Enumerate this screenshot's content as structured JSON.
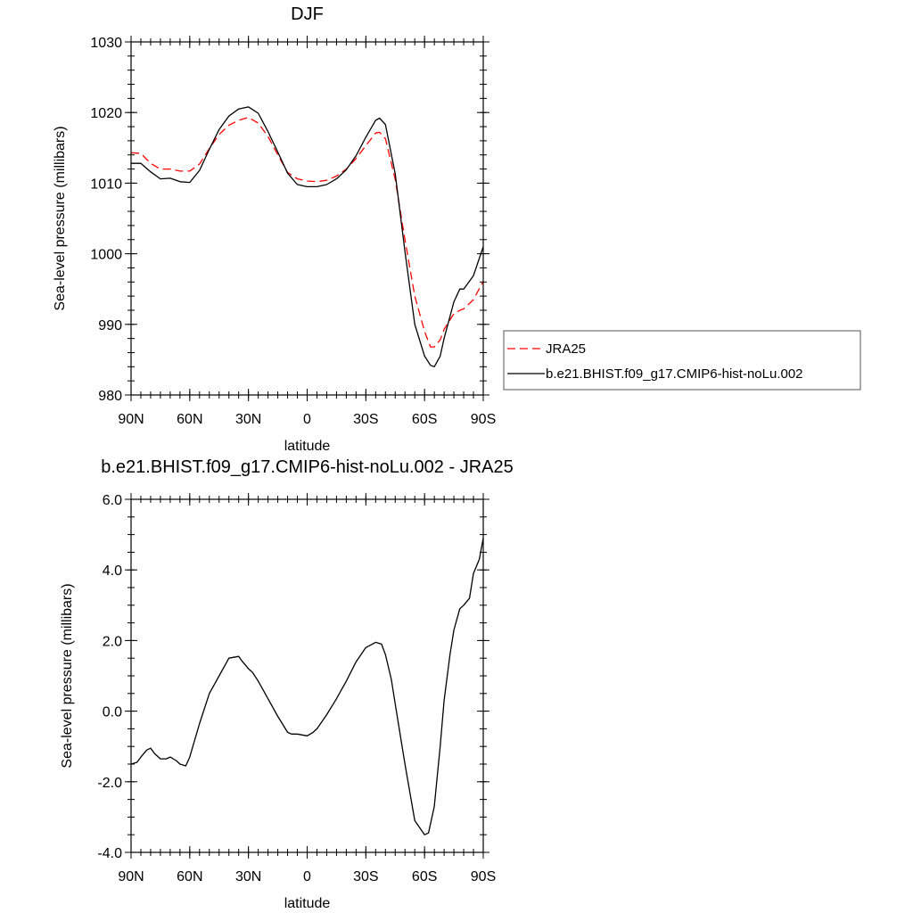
{
  "chart_data": [
    {
      "type": "line",
      "title": "DJF",
      "xlabel": "latitude",
      "ylabel": "Sea-level pressure (millibars)",
      "xlim": [
        90,
        -90
      ],
      "ylim": [
        980,
        1030
      ],
      "xticks": [
        90,
        60,
        30,
        0,
        -30,
        -60,
        -90
      ],
      "xtick_labels": [
        "90N",
        "60N",
        "30N",
        "0",
        "30S",
        "60S",
        "90S"
      ],
      "yticks": [
        980,
        990,
        1000,
        1010,
        1020,
        1030
      ],
      "ytick_labels": [
        "980",
        "990",
        "1000",
        "1010",
        "1020",
        "1030"
      ],
      "legend": {
        "placement": "right"
      },
      "series": [
        {
          "name": "JRA25",
          "color": "#ff0000",
          "dash": "dashed",
          "x": [
            90,
            85,
            80,
            75,
            70,
            65,
            60,
            55,
            50,
            45,
            40,
            35,
            30,
            25,
            20,
            15,
            10,
            5,
            0,
            -5,
            -10,
            -15,
            -20,
            -25,
            -30,
            -35,
            -37,
            -40,
            -45,
            -50,
            -55,
            -60,
            -63,
            -65,
            -68,
            -70,
            -75,
            -78,
            -80,
            -85,
            -90
          ],
          "y": [
            1014.3,
            1014.2,
            1012.8,
            1012.0,
            1012.0,
            1011.7,
            1011.7,
            1012.7,
            1014.9,
            1016.9,
            1018.2,
            1018.9,
            1019.3,
            1018.5,
            1016.6,
            1014.0,
            1011.5,
            1010.6,
            1010.3,
            1010.2,
            1010.4,
            1011.0,
            1012.0,
            1013.5,
            1015.3,
            1017.1,
            1017.2,
            1016.3,
            1010.5,
            1002.0,
            994.0,
            989.0,
            986.8,
            986.8,
            987.8,
            989.3,
            991.5,
            992.0,
            992.2,
            993.5,
            996.1
          ]
        },
        {
          "name": "b.e21.BHIST.f09_g17.CMIP6-hist-noLu.002",
          "color": "#000000",
          "dash": "solid",
          "x": [
            90,
            85,
            80,
            75,
            70,
            65,
            60,
            55,
            50,
            45,
            40,
            35,
            30,
            25,
            20,
            15,
            10,
            5,
            0,
            -5,
            -10,
            -15,
            -20,
            -25,
            -30,
            -35,
            -37,
            -40,
            -45,
            -50,
            -55,
            -60,
            -63,
            -65,
            -68,
            -70,
            -75,
            -78,
            -80,
            -85,
            -90
          ],
          "y": [
            1012.8,
            1012.8,
            1011.6,
            1010.6,
            1010.7,
            1010.2,
            1010.1,
            1011.8,
            1014.8,
            1017.6,
            1019.5,
            1020.5,
            1020.8,
            1019.9,
            1017.3,
            1014.4,
            1011.4,
            1009.8,
            1009.5,
            1009.5,
            1009.8,
            1010.6,
            1011.9,
            1013.9,
            1016.5,
            1018.9,
            1019.2,
            1018.3,
            1011.3,
            1000.3,
            990.0,
            985.5,
            984.2,
            984.0,
            985.5,
            988.0,
            993.2,
            995.0,
            995.0,
            996.9,
            1001.0
          ]
        }
      ]
    },
    {
      "type": "line",
      "title": "b.e21.BHIST.f09_g17.CMIP6-hist-noLu.002 - JRA25",
      "xlabel": "latitude",
      "ylabel": "Sea-level pressure (millibars)",
      "xlim": [
        90,
        -90
      ],
      "ylim": [
        -4.0,
        6.0
      ],
      "xticks": [
        90,
        60,
        30,
        0,
        -30,
        -60,
        -90
      ],
      "xtick_labels": [
        "90N",
        "60N",
        "30N",
        "0",
        "30S",
        "60S",
        "90S"
      ],
      "yticks": [
        -4.0,
        -2.0,
        0.0,
        2.0,
        4.0,
        6.0
      ],
      "ytick_labels": [
        "-4.0",
        "-2.0",
        "0.0",
        "2.0",
        "4.0",
        "6.0"
      ],
      "series": [
        {
          "color": "#000000",
          "dash": "solid",
          "x": [
            90,
            87,
            85,
            82,
            80,
            78,
            75,
            72,
            70,
            67,
            65,
            62,
            60,
            55,
            50,
            45,
            40,
            35,
            33,
            30,
            28,
            25,
            20,
            15,
            10,
            8,
            5,
            0,
            -3,
            -5,
            -10,
            -15,
            -20,
            -25,
            -30,
            -35,
            -38,
            -40,
            -43,
            -45,
            -50,
            -55,
            -60,
            -62,
            -65,
            -68,
            -70,
            -73,
            -75,
            -78,
            -80,
            -83,
            -85,
            -88,
            -90
          ],
          "y": [
            -1.5,
            -1.45,
            -1.3,
            -1.1,
            -1.05,
            -1.2,
            -1.35,
            -1.35,
            -1.3,
            -1.4,
            -1.5,
            -1.55,
            -1.3,
            -0.35,
            0.5,
            1.0,
            1.5,
            1.55,
            1.4,
            1.2,
            1.1,
            0.85,
            0.35,
            -0.15,
            -0.6,
            -0.65,
            -0.65,
            -0.7,
            -0.6,
            -0.5,
            -0.1,
            0.35,
            0.85,
            1.4,
            1.8,
            1.95,
            1.9,
            1.6,
            0.9,
            0.2,
            -1.5,
            -3.1,
            -3.5,
            -3.45,
            -2.7,
            -1.0,
            0.3,
            1.6,
            2.3,
            2.9,
            3.0,
            3.2,
            3.9,
            4.3,
            4.9
          ]
        }
      ]
    }
  ]
}
